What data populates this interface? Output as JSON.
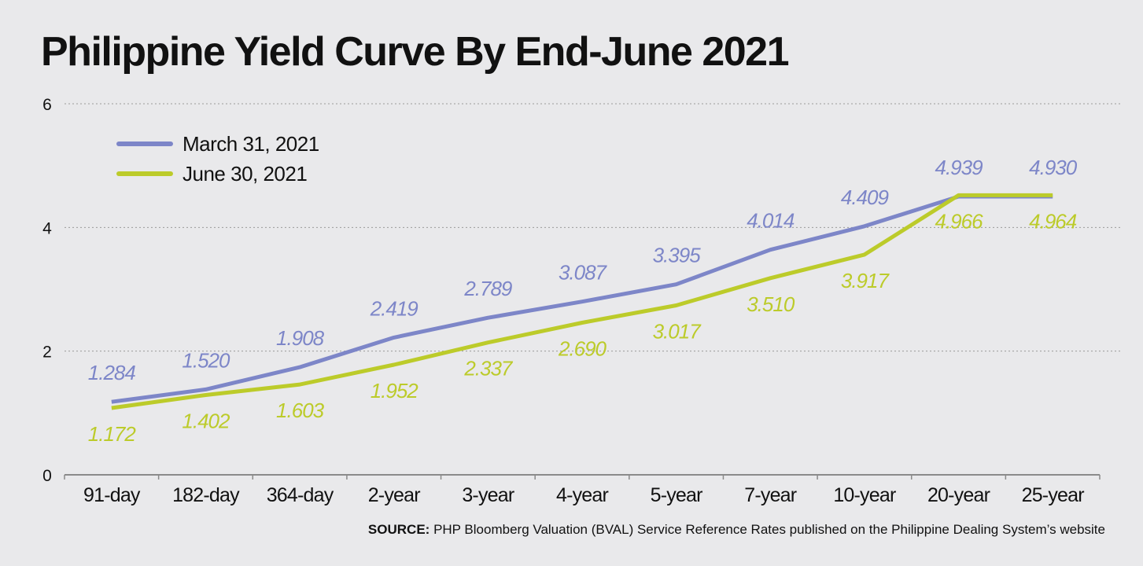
{
  "title": "Philippine Yield Curve By End-June 2021",
  "source": {
    "label": "SOURCE:",
    "text": "PHP Bloomberg Valuation (BVAL) Service Reference Rates published on the Philippine Dealing System’s website"
  },
  "colors": {
    "background": "#e9e9eb",
    "march": "#7d86c8",
    "june": "#bccb2a",
    "axis": "#8a8a8a",
    "grid": "#9a9a9a",
    "text": "#111111"
  },
  "chart_data": {
    "type": "line",
    "title": "Philippine Yield Curve By End-June 2021",
    "xlabel": "",
    "ylabel": "",
    "categories": [
      "91-day",
      "182-day",
      "364-day",
      "2-year",
      "3-year",
      "4-year",
      "5-year",
      "7-year",
      "10-year",
      "20-year",
      "25-year"
    ],
    "ylim": [
      0,
      6
    ],
    "yticks": [
      0,
      2,
      4,
      6
    ],
    "grid": "horizontal-dotted",
    "legend_position": "top-left",
    "series": [
      {
        "name": "March 31, 2021",
        "color": "#7d86c8",
        "values": [
          1.284,
          1.52,
          1.908,
          2.419,
          2.789,
          3.087,
          3.395,
          4.014,
          4.409,
          4.939,
          4.93
        ],
        "labels": [
          "1.284",
          "1.520",
          "1.908",
          "2.419",
          "2.789",
          "3.087",
          "3.395",
          "4.014",
          "4.409",
          "4.939",
          "4.930"
        ],
        "plotted_values": [
          1.18,
          1.38,
          1.74,
          2.22,
          2.54,
          2.8,
          3.08,
          3.64,
          4.02,
          4.5,
          4.5
        ]
      },
      {
        "name": "June 30, 2021",
        "color": "#bccb2a",
        "values": [
          1.172,
          1.402,
          1.603,
          1.952,
          2.337,
          2.69,
          3.017,
          3.51,
          3.917,
          4.966,
          4.964
        ],
        "labels": [
          "1.172",
          "1.402",
          "1.603",
          "1.952",
          "2.337",
          "2.690",
          "3.017",
          "3.510",
          "3.917",
          "4.966",
          "4.964"
        ],
        "plotted_values": [
          1.08,
          1.29,
          1.46,
          1.78,
          2.14,
          2.46,
          2.74,
          3.18,
          3.56,
          4.52,
          4.52
        ]
      }
    ]
  }
}
